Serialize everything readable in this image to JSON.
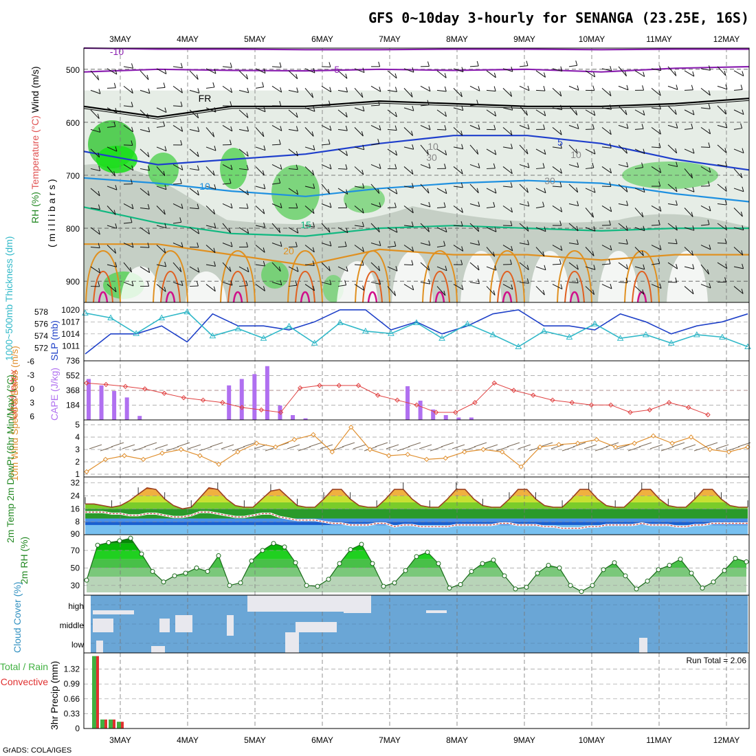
{
  "title": "GFS 0~10day 3-hourly for SENANGA (23.25E, 16S)",
  "footer": "GrADS: COLA/IGES",
  "dates": [
    "3MAY",
    "4MAY",
    "5MAY",
    "6MAY",
    "7MAY",
    "8MAY",
    "9MAY",
    "10MAY",
    "11MAY",
    "12MAY"
  ],
  "chart_data": [
    {
      "type": "heatmap",
      "panel": "upper_air",
      "ylabel_parts": [
        "RH (%)",
        "Temperature (°C)",
        "Wind (m/s)",
        "( m i l l i b a r s )"
      ],
      "yticks": [
        500,
        600,
        700,
        800,
        900
      ],
      "ylim": [
        940,
        460
      ],
      "contour_labels": [
        "-10",
        "-5",
        "FR",
        "5",
        "10",
        "15",
        "20",
        "10",
        "30",
        "10",
        "30"
      ],
      "series": [
        {
          "name": "-10",
          "color": "#8a1fb0",
          "level_mb": [
            460,
            462,
            462,
            463,
            463,
            462,
            462,
            463,
            462,
            462
          ]
        },
        {
          "name": "-5",
          "color": "#8a1fb0",
          "level_mb": [
            505,
            500,
            502,
            503,
            500,
            502,
            500,
            505,
            498,
            495
          ]
        },
        {
          "name": "FR",
          "color": "#000000",
          "level_mb": [
            570,
            590,
            570,
            570,
            560,
            565,
            570,
            570,
            565,
            555
          ]
        },
        {
          "name": "5",
          "color": "#1e3ecc",
          "level_mb": [
            655,
            680,
            670,
            660,
            640,
            625,
            625,
            640,
            670,
            690
          ]
        },
        {
          "name": "10",
          "color": "#1e90e0",
          "level_mb": [
            705,
            715,
            730,
            740,
            725,
            715,
            710,
            715,
            735,
            750
          ]
        },
        {
          "name": "15",
          "color": "#10b880",
          "level_mb": [
            760,
            790,
            810,
            815,
            800,
            795,
            800,
            805,
            800,
            800
          ]
        },
        {
          "name": "20",
          "color": "#e09020",
          "level_mb": [
            830,
            830,
            850,
            870,
            840,
            850,
            850,
            860,
            850,
            850
          ]
        }
      ]
    },
    {
      "type": "line",
      "panel": "slp_thickness",
      "ylabel_left": "1000~500mb Thickness (dm)",
      "ylabel_right": "SLP (mb)",
      "yticks_left": [
        572,
        574,
        576,
        578
      ],
      "yticks_right": [
        1011,
        1014,
        1017,
        1020
      ],
      "series": [
        {
          "name": "SLP (mb)",
          "color": "#1e40c8",
          "values": [
            1009,
            1014,
            1014,
            1016,
            1012,
            1019,
            1016,
            1016,
            1015,
            1017,
            1020,
            1020,
            1015,
            1017,
            1014,
            1016,
            1019,
            1020,
            1016,
            1016,
            1015,
            1019,
            1017,
            1014,
            1016,
            1017,
            1019
          ]
        },
        {
          "name": "1000~500mb Thickness (dm)",
          "color": "#30b8c8",
          "values": [
            577.8,
            577.0,
            574.4,
            577.0,
            578.0,
            574.0,
            575.2,
            573.6,
            575.6,
            572.8,
            576.2,
            574.8,
            574.4,
            576.2,
            573.6,
            576.0,
            574.2,
            572.2,
            574.8,
            573.8,
            576.0,
            573.6,
            574.2,
            572.8,
            574.2,
            573.8,
            572.2
          ]
        }
      ]
    },
    {
      "type": "bar",
      "panel": "cape_li",
      "ylabel_left": "Lifted Index",
      "ylabel_right": "CAPE (J/kg)",
      "yticks_left": [
        "-6",
        "-3",
        "0",
        "3",
        "6"
      ],
      "yticks_right": [
        "184",
        "368",
        "552",
        "736"
      ],
      "cape_values": [
        510,
        430,
        360,
        280,
        50,
        0,
        0,
        0,
        0,
        0,
        0,
        430,
        510,
        570,
        670,
        180,
        60,
        20,
        0,
        0,
        0,
        0,
        0,
        0,
        0,
        420,
        240,
        130,
        60,
        30,
        30,
        0,
        0
      ],
      "li_values": [
        -1.5,
        -1.2,
        -0.8,
        -0.3,
        0.6,
        1.5,
        2,
        2.5,
        3.5,
        4,
        4.5,
        -0.5,
        -1,
        -1,
        -1,
        1,
        2,
        3,
        4.5,
        4.5,
        2.5,
        -1.5,
        0,
        1,
        2,
        2.5,
        3,
        3,
        4.5,
        4,
        2.5,
        3.5,
        5
      ]
    },
    {
      "type": "line",
      "panel": "wind10m",
      "ylabel": "10m Wind Speed & Barbs (m/s)",
      "yticks": [
        1,
        2,
        3,
        4,
        5
      ],
      "series": [
        {
          "name": "10m Wind Speed",
          "color": "#e09030",
          "values": [
            1.2,
            2.2,
            2.5,
            2.2,
            2.7,
            3,
            2.5,
            1.8,
            2.8,
            3.5,
            3.2,
            3.8,
            4.2,
            2.8,
            4.8,
            3,
            2.5,
            2.6,
            2.2,
            2.3,
            2.8,
            3,
            2.8,
            1.6,
            3.2,
            3.4,
            3.5,
            3.8,
            3.2,
            3.5,
            4.1,
            3.5,
            4,
            3,
            2.8,
            3.2
          ]
        }
      ]
    },
    {
      "type": "area",
      "panel": "temperature",
      "ylabel": "2m Temp 2m DewPt (6hr Min/Max) (°C)",
      "yticks": [
        8,
        16,
        24,
        32
      ],
      "series": [
        {
          "name": "2m Temp",
          "color": "#9b4020",
          "values": [
            19,
            19,
            18,
            17,
            18,
            21,
            25,
            29,
            28,
            22,
            18,
            16,
            17,
            23,
            29,
            28,
            22,
            18,
            17,
            17,
            22,
            27,
            28,
            23,
            18,
            17,
            17,
            22,
            28,
            28,
            22,
            18,
            17,
            17,
            22,
            28,
            28,
            22,
            18,
            17,
            17,
            22,
            28,
            28,
            22,
            18,
            17,
            17,
            22,
            28,
            28,
            22,
            18,
            17,
            17,
            22,
            28,
            28,
            22,
            18,
            17,
            17,
            22,
            28,
            28,
            22,
            18,
            17,
            17,
            22,
            28,
            28,
            22,
            18,
            17,
            17
          ]
        },
        {
          "name": "2m DewPt",
          "color": "#c04040",
          "values": [
            14,
            14,
            14,
            13,
            13,
            12,
            12,
            13,
            13,
            12,
            11,
            11,
            12,
            14,
            14,
            13,
            12,
            11,
            11,
            12,
            13,
            13,
            11,
            10,
            9,
            9,
            9,
            8,
            7,
            7,
            6,
            6,
            6,
            7,
            7,
            5,
            6,
            6,
            5,
            5,
            5,
            5,
            6,
            6,
            6,
            6,
            6,
            7,
            7,
            6,
            6,
            6,
            5,
            5,
            4,
            4,
            4,
            5,
            5,
            6,
            6,
            6,
            6,
            7,
            6,
            6,
            6,
            5,
            5,
            6,
            6,
            7,
            7,
            7,
            7,
            7
          ]
        }
      ]
    },
    {
      "type": "area",
      "panel": "rh2m",
      "ylabel": "2m RH (%)",
      "yticks": [
        30,
        50,
        70
      ],
      "series": [
        {
          "name": "2m RH",
          "color": "#2aa02a",
          "values": [
            36,
            76,
            79,
            81,
            84,
            66,
            46,
            34,
            41,
            44,
            50,
            46,
            64,
            30,
            33,
            58,
            70,
            78,
            74,
            56,
            30,
            29,
            37,
            55,
            71,
            77,
            55,
            29,
            33,
            47,
            63,
            68,
            55,
            27,
            31,
            46,
            55,
            59,
            41,
            26,
            28,
            44,
            53,
            50,
            30,
            23,
            30,
            48,
            56,
            41,
            26,
            35,
            48,
            53,
            60,
            44,
            27,
            34,
            47,
            61,
            57
          ]
        }
      ]
    },
    {
      "type": "heatmap",
      "panel": "cloud",
      "ylabel": "Cloud Cover (%)",
      "ytick_labels": [
        "high",
        "middle",
        "low"
      ]
    },
    {
      "type": "bar",
      "panel": "precip",
      "ylabel_left": "Total / Rain Convective",
      "ylabel_right": "3hr Precip (mm)",
      "yticks": [
        "0",
        "0.33",
        "0.66",
        "0.99",
        "1.32"
      ],
      "ylim": [
        0,
        1.65
      ],
      "annotation": "Run Total = 2.06",
      "series": [
        {
          "name": "Total",
          "color": "#40b040",
          "values": [
            1.61,
            0.2,
            0.2,
            0.15
          ]
        },
        {
          "name": "Convective",
          "color": "#e03030",
          "values": [
            1.61,
            0.2,
            0.2,
            0.15
          ]
        }
      ]
    }
  ]
}
